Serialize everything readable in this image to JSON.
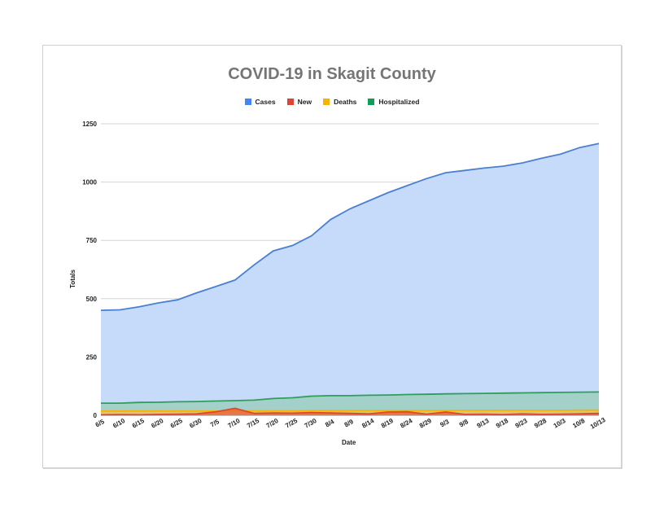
{
  "chart_data": {
    "type": "area",
    "title": "COVID-19 in Skagit County",
    "xlabel": "Date",
    "ylabel": "Totals",
    "ylim": [
      0,
      1250
    ],
    "yticks": [
      0,
      250,
      500,
      750,
      1000,
      1250
    ],
    "grid": true,
    "legend_position": "top",
    "categories": [
      "6/5",
      "6/10",
      "6/15",
      "6/20",
      "6/25",
      "6/30",
      "7/5",
      "7/10",
      "7/15",
      "7/20",
      "7/25",
      "7/30",
      "8/4",
      "8/9",
      "8/14",
      "8/19",
      "8/24",
      "8/29",
      "9/3",
      "9/8",
      "9/13",
      "9/18",
      "9/23",
      "9/28",
      "10/3",
      "10/8",
      "10/13"
    ],
    "series": [
      {
        "name": "Cases",
        "color": "#4a7fd1",
        "fill": "#c6dafa",
        "values": [
          450,
          452,
          465,
          482,
          495,
          525,
          552,
          580,
          645,
          705,
          728,
          770,
          840,
          885,
          920,
          955,
          985,
          1015,
          1040,
          1050,
          1060,
          1068,
          1082,
          1102,
          1120,
          1148,
          1165
        ]
      },
      {
        "name": "New",
        "color": "#e0452f",
        "fill": "#e66a3a",
        "values": [
          2,
          3,
          2,
          4,
          5,
          6,
          15,
          30,
          8,
          10,
          9,
          12,
          10,
          8,
          6,
          14,
          15,
          5,
          14,
          4,
          5,
          3,
          6,
          4,
          5,
          6,
          8
        ]
      },
      {
        "name": "Deaths",
        "color": "#f4b400",
        "fill": "#e8c36a",
        "values": [
          18,
          18,
          18,
          18,
          18,
          18,
          18,
          19,
          19,
          19,
          19,
          20,
          20,
          20,
          20,
          20,
          20,
          20,
          20,
          21,
          21,
          21,
          21,
          21,
          21,
          22,
          22
        ]
      },
      {
        "name": "Hospitalized",
        "color": "#2f9e5c",
        "fill": "#9ccfc0",
        "values": [
          52,
          52,
          55,
          56,
          58,
          59,
          61,
          63,
          65,
          72,
          75,
          82,
          84,
          84,
          86,
          87,
          89,
          90,
          92,
          93,
          94,
          95,
          96,
          97,
          98,
          99,
          100
        ]
      }
    ]
  },
  "legend": {
    "items": [
      {
        "label": "Cases",
        "color": "#4285f4"
      },
      {
        "label": "New",
        "color": "#db4437"
      },
      {
        "label": "Deaths",
        "color": "#f4b400"
      },
      {
        "label": "Hospitalized",
        "color": "#0f9d58"
      }
    ]
  }
}
